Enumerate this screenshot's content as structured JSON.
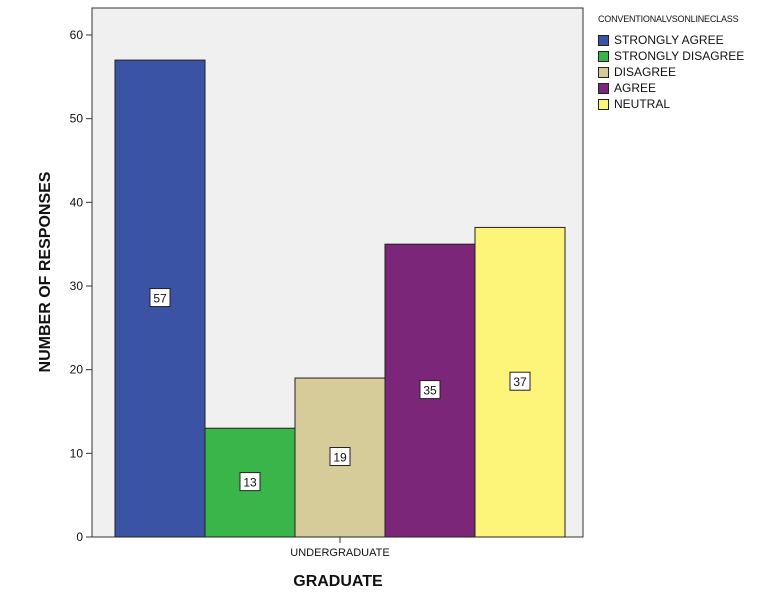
{
  "chart_data": {
    "type": "bar",
    "categories": [
      "UNDERGRADUATE"
    ],
    "series": [
      {
        "name": "STRONGLY AGREE",
        "values": [
          57
        ],
        "color": "#3a53a4"
      },
      {
        "name": "STRONGLY DISAGREE",
        "values": [
          13
        ],
        "color": "#3ab54a"
      },
      {
        "name": "DISAGREE",
        "values": [
          19
        ],
        "color": "#d6cc99"
      },
      {
        "name": "AGREE",
        "values": [
          35
        ],
        "color": "#7b2678"
      },
      {
        "name": "NEUTRAL",
        "values": [
          37
        ],
        "color": "#fdf57a"
      }
    ],
    "xlabel": "GRADUATE",
    "ylabel": "NUMBER OF RESPONSES",
    "ylim": [
      0,
      60
    ],
    "yticks": [
      0,
      10,
      20,
      30,
      40,
      50,
      60
    ],
    "legend_title": "CONVENTIONALVSONLINECLASS",
    "legend_position": "right",
    "grid": false,
    "plot_background": "#f0f0f0"
  }
}
